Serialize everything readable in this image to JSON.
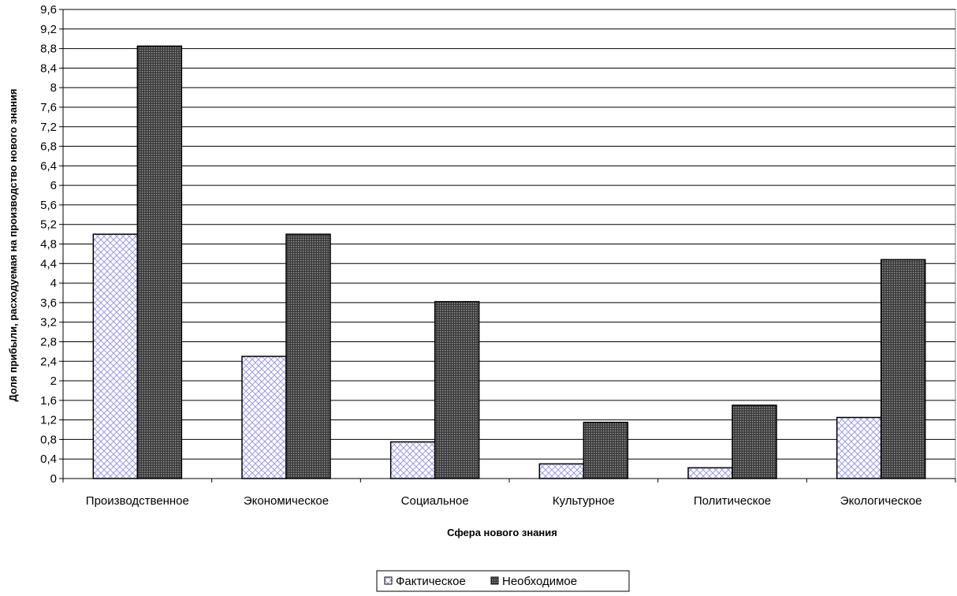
{
  "chart_data": {
    "type": "bar",
    "title": "",
    "xlabel": "Сфера нового знания",
    "ylabel": "Доля прибыли, расходуемая на производство нового знания",
    "categories": [
      "Производственное",
      "Экономическое",
      "Социальное",
      "Культурное",
      "Политическое",
      "Экологическое"
    ],
    "series": [
      {
        "name": "Фактическое",
        "values": [
          5.0,
          2.5,
          0.75,
          0.3,
          0.22,
          1.25
        ],
        "color": "#ccccff",
        "pattern": "crosshatch"
      },
      {
        "name": "Необходимое",
        "values": [
          8.85,
          5.0,
          3.62,
          1.15,
          1.5,
          4.48
        ],
        "color": "#5a5a5a",
        "pattern": "dots"
      }
    ],
    "ylim": [
      0,
      9.6
    ],
    "yticks": [
      "0",
      "0,4",
      "0,8",
      "1,2",
      "1,6",
      "2",
      "2,4",
      "2,8",
      "3,2",
      "3,6",
      "4",
      "4,4",
      "4,8",
      "5,2",
      "5,6",
      "6",
      "6,4",
      "6,8",
      "7,2",
      "7,6",
      "8",
      "8,4",
      "8,8",
      "9,2",
      "9,6"
    ],
    "grid": true,
    "legend": "bottom-center"
  }
}
